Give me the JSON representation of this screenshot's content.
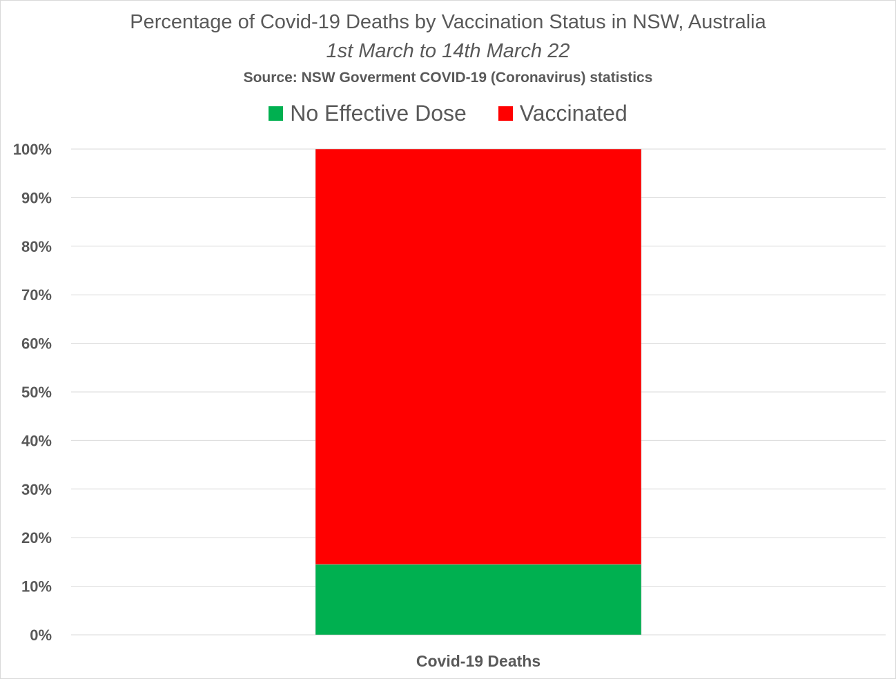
{
  "chart_data": {
    "type": "bar",
    "stacked": true,
    "title": "Percentage of Covid-19 Deaths by Vaccination Status in NSW, Australia",
    "subtitle": "1st March to 14th March 22",
    "source": "Source: NSW Goverment COVID-19 (Coronavirus) statistics",
    "categories": [
      "Covid-19 Deaths"
    ],
    "series": [
      {
        "name": "No Effective Dose",
        "values": [
          0.145
        ],
        "color": "#00b050"
      },
      {
        "name": "Vaccinated",
        "values": [
          0.855
        ],
        "color": "#ff0000"
      }
    ],
    "yticks": [
      "0%",
      "10%",
      "20%",
      "30%",
      "40%",
      "50%",
      "60%",
      "70%",
      "80%",
      "90%",
      "100%"
    ],
    "ylim": [
      0,
      1
    ],
    "grid": true,
    "legend": "top",
    "xlabel": "",
    "ylabel": ""
  }
}
